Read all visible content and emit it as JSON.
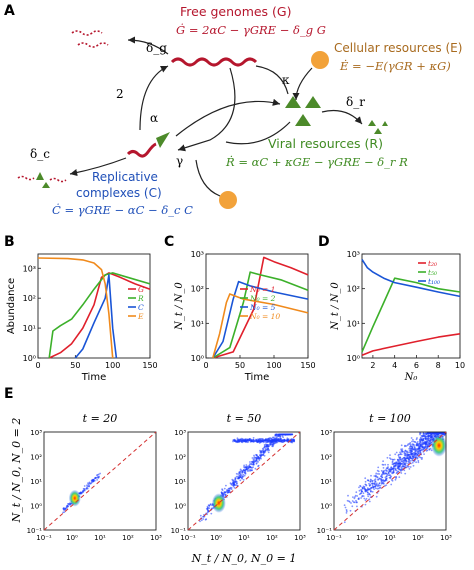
{
  "panel_labels": {
    "A": "A",
    "B": "B",
    "C": "C",
    "D": "D",
    "E": "E"
  },
  "colors": {
    "free": "#b5162d",
    "resource": "#a86a1e",
    "viral": "#3f8b22",
    "replicative": "#1f4fb8",
    "orange": "#f2a23a",
    "green_shape": "#4c8a2a",
    "red": "#e0202c",
    "green": "#3cb02a",
    "blue": "#1a55d6",
    "orange_line": "#f08a1c",
    "ref_line": "#d43030"
  },
  "diagram": {
    "free_title": "Free genomes (G)",
    "free_eq": "Ġ = 2αC − γGRE − δ_g G",
    "cell_title": "Cellular resources (E)",
    "cell_eq": "Ė = −E(γGR + κG)",
    "viral_title": "Viral resources (R)",
    "viral_eq": "Ṙ = αC + κGE − γGRE − δ_r R",
    "rep_title": "Replicative",
    "rep_title2": "complexes (C)",
    "rep_eq": "Ċ = γGRE − αC − δ_c C",
    "labels": {
      "delta_g": "δ_g",
      "delta_r": "δ_r",
      "delta_c": "δ_c",
      "kappa": "κ",
      "two": "2",
      "alpha": "α",
      "gamma": "γ"
    }
  },
  "panel_b": {
    "ylabel": "Abundance",
    "xlabel": "Time",
    "xticks": [
      "0",
      "50",
      "100",
      "150"
    ],
    "yticks": [
      "10⁰",
      "10¹",
      "10²",
      "10³"
    ],
    "legend": [
      "G",
      "R",
      "C",
      "E"
    ]
  },
  "panel_c": {
    "ylabel": "N_t / N_0",
    "xlabel": "Time",
    "xticks": [
      "0",
      "50",
      "100",
      "150"
    ],
    "yticks": [
      "10⁰",
      "10¹",
      "10²",
      "10³"
    ],
    "legend": [
      "N₀ = 1",
      "N₀ = 2",
      "N₀ = 5",
      "N₀ = 10"
    ]
  },
  "panel_d": {
    "ylabel": "N_t / N_0",
    "xlabel": "N₀",
    "xticks": [
      "2",
      "4",
      "6",
      "8",
      "10"
    ],
    "yticks": [
      "10⁰",
      "10¹",
      "10²",
      "10³"
    ],
    "legend": [
      "t₂₀",
      "t₅₀",
      "t₁₀₀"
    ]
  },
  "panel_e": {
    "titles": [
      "t = 20",
      "t = 50",
      "t = 100"
    ],
    "ylabel": "N_t / N_0,   N_0 = 2",
    "xlabel": "N_t / N_0,   N_0 = 1",
    "ticks": [
      "10⁻¹",
      "10⁰",
      "10¹",
      "10²",
      "10³"
    ]
  },
  "chart_data": [
    {
      "type": "line",
      "panel": "B",
      "xlabel": "Time",
      "ylabel": "Abundance",
      "xlim": [
        0,
        150
      ],
      "ylim": [
        1,
        3000
      ],
      "yscale": "log",
      "series": [
        {
          "name": "G",
          "x": [
            15,
            30,
            45,
            60,
            75,
            85,
            95,
            110,
            130,
            150
          ],
          "y": [
            1,
            1.5,
            3,
            10,
            60,
            500,
            700,
            500,
            300,
            200
          ]
        },
        {
          "name": "R",
          "x": [
            15,
            20,
            30,
            45,
            60,
            75,
            90,
            100,
            120,
            150
          ],
          "y": [
            1,
            8,
            12,
            20,
            60,
            200,
            600,
            700,
            500,
            300
          ]
        },
        {
          "name": "C",
          "x": [
            50,
            60,
            75,
            90,
            95,
            100,
            105
          ],
          "y": [
            1,
            2,
            15,
            100,
            600,
            10,
            1
          ]
        },
        {
          "name": "E",
          "x": [
            0,
            40,
            60,
            75,
            85,
            90,
            95,
            100
          ],
          "y": [
            2200,
            2100,
            1900,
            1500,
            900,
            300,
            30,
            1
          ]
        }
      ]
    },
    {
      "type": "line",
      "panel": "C",
      "xlabel": "Time",
      "ylabel": "N_t / N_0",
      "xlim": [
        0,
        150
      ],
      "ylim": [
        1,
        1000
      ],
      "yscale": "log",
      "series": [
        {
          "name": "N₀ = 1",
          "x": [
            10,
            40,
            70,
            85,
            100,
            125,
            150
          ],
          "y": [
            1,
            1.5,
            25,
            800,
            600,
            400,
            250
          ]
        },
        {
          "name": "N₀ = 2",
          "x": [
            10,
            35,
            55,
            65,
            80,
            110,
            150
          ],
          "y": [
            1,
            2,
            40,
            300,
            250,
            180,
            90
          ]
        },
        {
          "name": "N₀ = 5",
          "x": [
            10,
            25,
            40,
            48,
            65,
            100,
            150
          ],
          "y": [
            1,
            3,
            50,
            160,
            120,
            80,
            50
          ]
        },
        {
          "name": "N₀ = 10",
          "x": [
            10,
            20,
            30,
            35,
            55,
            100,
            150
          ],
          "y": [
            1,
            5,
            40,
            70,
            50,
            35,
            20
          ]
        }
      ]
    },
    {
      "type": "line",
      "panel": "D",
      "xlabel": "N₀",
      "ylabel": "N_t / N_0",
      "xlim": [
        1,
        10
      ],
      "ylim": [
        1,
        1000
      ],
      "yscale": "log",
      "series": [
        {
          "name": "t₂₀",
          "x": [
            1,
            2,
            4,
            6,
            8,
            10
          ],
          "y": [
            1.2,
            1.6,
            2.2,
            3,
            4,
            5
          ]
        },
        {
          "name": "t₅₀",
          "x": [
            1,
            2,
            3,
            4,
            6,
            8,
            10
          ],
          "y": [
            1.5,
            8,
            40,
            200,
            150,
            100,
            80
          ]
        },
        {
          "name": "t₁₀₀",
          "x": [
            1,
            1.5,
            2,
            3,
            4,
            6,
            8,
            10
          ],
          "y": [
            700,
            400,
            300,
            200,
            150,
            110,
            80,
            60
          ]
        }
      ]
    },
    {
      "type": "scatter",
      "panel": "E",
      "xlabel": "N_t / N_0,   N_0 = 1",
      "ylabel": "N_t / N_0,   N_0 = 2",
      "xlim": [
        0.1,
        1000
      ],
      "ylim": [
        0.1,
        1000
      ],
      "xscale": "log",
      "yscale": "log",
      "subplots": [
        "t = 20",
        "t = 50",
        "t = 100"
      ]
    }
  ]
}
